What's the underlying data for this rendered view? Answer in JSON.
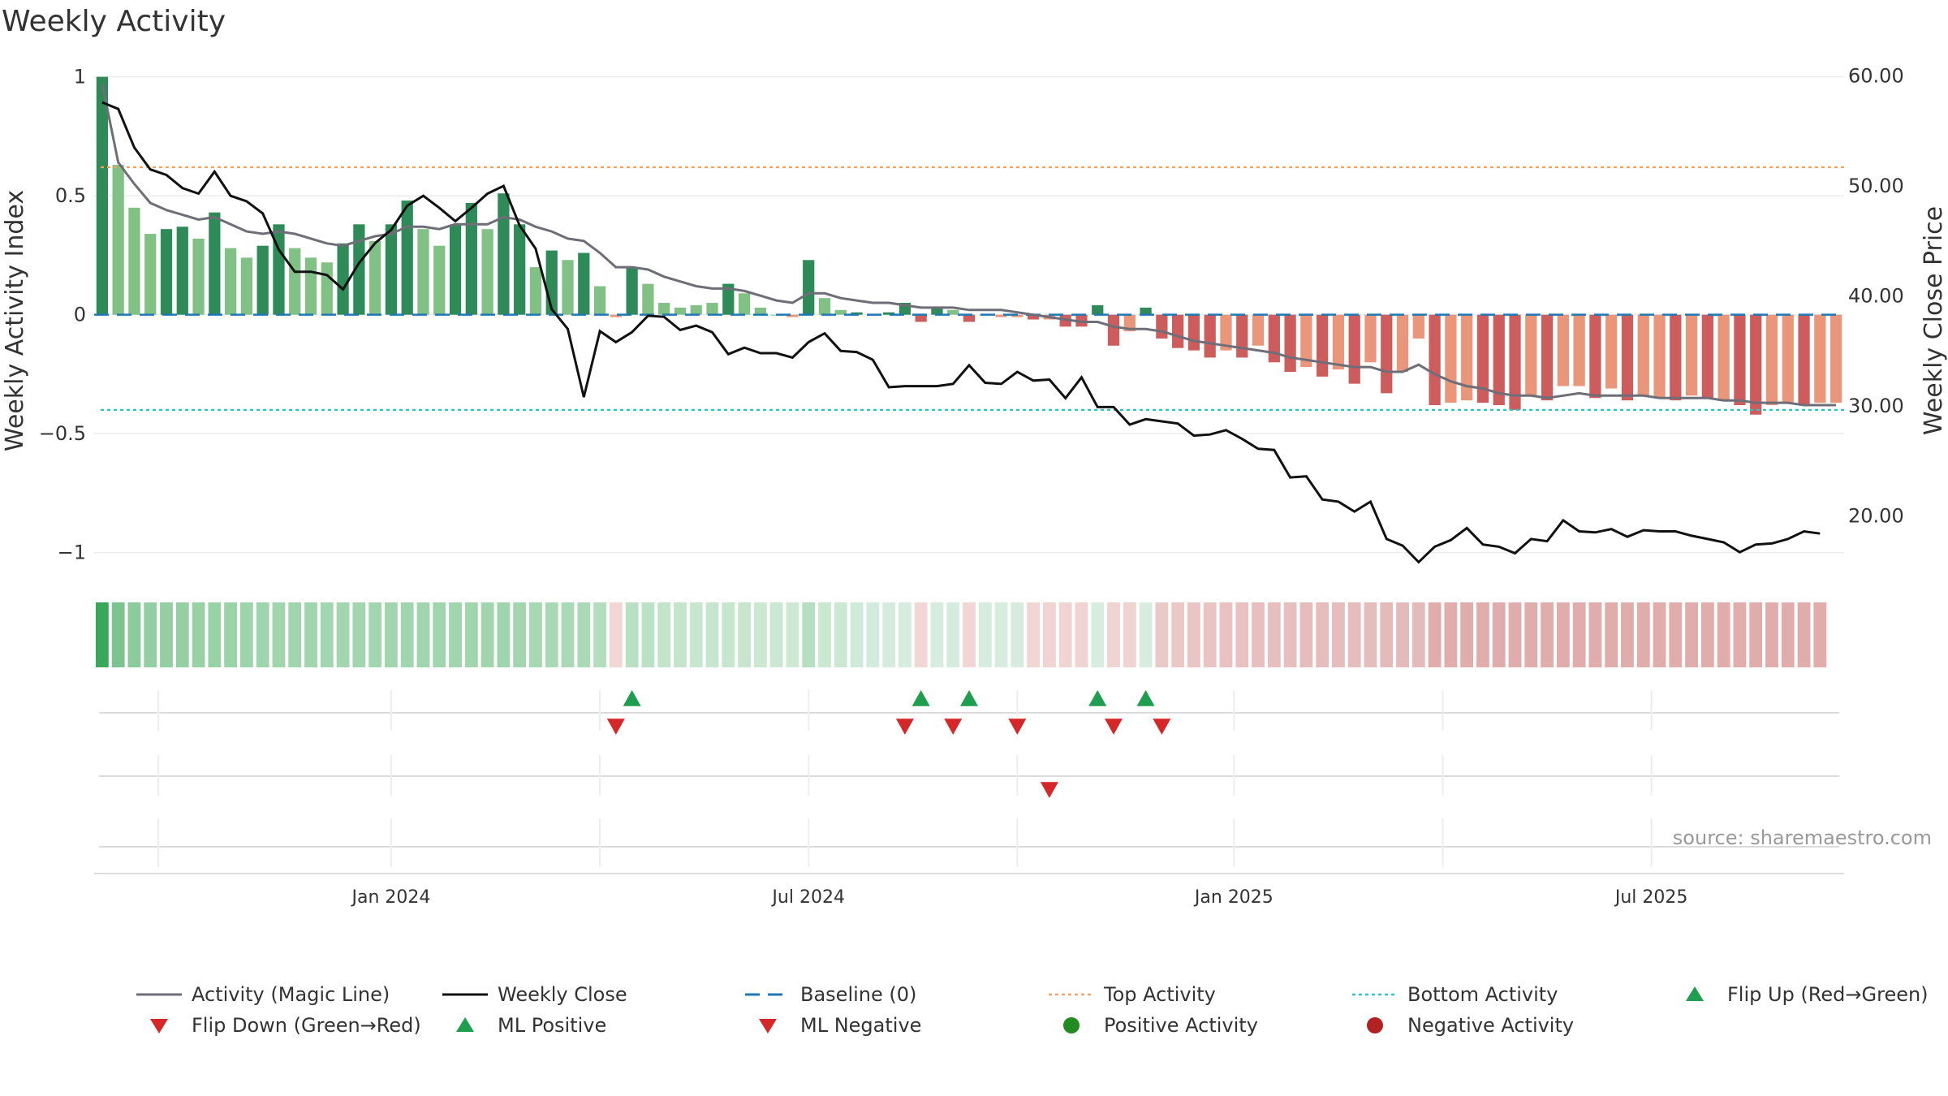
{
  "chart_data": {
    "type": "bar",
    "title": "Weekly Activity",
    "ylabel_left": "Weekly Activity Index",
    "ylabel_right": "Weekly Close Price",
    "ylim_left": [
      -1.1,
      1.05
    ],
    "ylim_right": [
      14.5,
      61.0
    ],
    "yticks_left": [
      "1",
      "0.5",
      "0",
      "−0.5",
      "−1"
    ],
    "yticks_left_values": [
      1,
      0.5,
      0,
      -0.5,
      -1
    ],
    "yticks_right": [
      "60.00",
      "50.00",
      "40.00",
      "30.00",
      "20.00"
    ],
    "yticks_right_values": [
      60,
      50,
      40,
      30,
      20
    ],
    "xticks": [
      "Jan 2024",
      "Jul 2024",
      "Jan 2025",
      "Jul 2025"
    ],
    "xticks_week_index": [
      18,
      44,
      70.5,
      96.5
    ],
    "source": "source: sharemaestro.com",
    "top_activity": 0.62,
    "bottom_activity": -0.4,
    "baseline": 0,
    "colors": {
      "strong_pos": "#2e8b57",
      "weak_pos": "#82c185",
      "strong_neg": "#cd5c5c",
      "weak_neg": "#e9967a",
      "magic_line": "#6e6e78",
      "close": "#111111",
      "baseline": "#1f77b4",
      "top": "#f0a45d",
      "bottom": "#2ec4c4",
      "marker_up": "#1f9e4f",
      "marker_down": "#d62728"
    },
    "activity": [
      1.0,
      0.63,
      0.45,
      0.34,
      0.36,
      0.37,
      0.32,
      0.43,
      0.28,
      0.24,
      0.29,
      0.38,
      0.28,
      0.24,
      0.22,
      0.3,
      0.38,
      0.31,
      0.38,
      0.48,
      0.36,
      0.29,
      0.38,
      0.47,
      0.36,
      0.51,
      0.38,
      0.2,
      0.27,
      0.23,
      0.26,
      0.12,
      -0.01,
      0.2,
      0.13,
      0.05,
      0.03,
      0.04,
      0.05,
      0.13,
      0.09,
      0.03,
      0.0,
      -0.01,
      0.23,
      0.07,
      0.02,
      0.01,
      0.0,
      0.01,
      0.05,
      -0.03,
      0.03,
      0.02,
      -0.03,
      0.0,
      -0.01,
      -0.01,
      -0.02,
      -0.02,
      -0.05,
      -0.05,
      0.04,
      -0.13,
      -0.07,
      0.03,
      -0.1,
      -0.14,
      -0.15,
      -0.18,
      -0.15,
      -0.18,
      -0.13,
      -0.2,
      -0.24,
      -0.22,
      -0.26,
      -0.23,
      -0.29,
      -0.2,
      -0.33,
      -0.24,
      -0.1,
      -0.38,
      -0.37,
      -0.36,
      -0.37,
      -0.38,
      -0.4,
      -0.34,
      -0.36,
      -0.3,
      -0.3,
      -0.35,
      -0.31,
      -0.36,
      -0.34,
      -0.35,
      -0.36,
      -0.34,
      -0.35,
      -0.36,
      -0.38,
      -0.42,
      -0.38,
      -0.37,
      -0.38,
      -0.37,
      -0.37
    ],
    "activity_strength": [
      "strong",
      "weak",
      "weak",
      "weak",
      "strong",
      "strong",
      "weak",
      "strong",
      "weak",
      "weak",
      "strong",
      "strong",
      "weak",
      "weak",
      "weak",
      "strong",
      "strong",
      "weak",
      "strong",
      "strong",
      "weak",
      "weak",
      "strong",
      "strong",
      "weak",
      "strong",
      "strong",
      "weak",
      "strong",
      "weak",
      "strong",
      "weak",
      "weak",
      "strong",
      "weak",
      "weak",
      "weak",
      "weak",
      "weak",
      "strong",
      "weak",
      "weak",
      "weak",
      "weak",
      "strong",
      "weak",
      "weak",
      "strong",
      "weak",
      "strong",
      "strong",
      "strong",
      "strong",
      "weak",
      "strong",
      "weak",
      "weak",
      "weak",
      "strong",
      "weak",
      "strong",
      "strong",
      "strong",
      "strong",
      "weak",
      "strong",
      "strong",
      "strong",
      "strong",
      "strong",
      "weak",
      "strong",
      "weak",
      "strong",
      "strong",
      "weak",
      "strong",
      "weak",
      "strong",
      "weak",
      "strong",
      "weak",
      "weak",
      "strong",
      "weak",
      "weak",
      "strong",
      "strong",
      "strong",
      "weak",
      "strong",
      "weak",
      "weak",
      "strong",
      "weak",
      "strong",
      "weak",
      "weak",
      "strong",
      "weak",
      "strong",
      "weak",
      "strong",
      "strong",
      "weak",
      "weak",
      "strong",
      "weak",
      "weak"
    ],
    "magic_line": [
      0.97,
      0.64,
      0.55,
      0.47,
      0.44,
      0.42,
      0.4,
      0.41,
      0.38,
      0.35,
      0.34,
      0.35,
      0.34,
      0.32,
      0.3,
      0.29,
      0.31,
      0.33,
      0.34,
      0.37,
      0.37,
      0.36,
      0.38,
      0.38,
      0.38,
      0.41,
      0.4,
      0.37,
      0.35,
      0.32,
      0.31,
      0.26,
      0.2,
      0.2,
      0.19,
      0.16,
      0.14,
      0.12,
      0.11,
      0.11,
      0.1,
      0.08,
      0.06,
      0.05,
      0.09,
      0.09,
      0.07,
      0.06,
      0.05,
      0.05,
      0.04,
      0.03,
      0.03,
      0.03,
      0.02,
      0.02,
      0.02,
      0.01,
      0.0,
      -0.01,
      -0.02,
      -0.03,
      -0.03,
      -0.05,
      -0.06,
      -0.06,
      -0.07,
      -0.09,
      -0.11,
      -0.12,
      -0.13,
      -0.14,
      -0.15,
      -0.16,
      -0.18,
      -0.19,
      -0.2,
      -0.21,
      -0.22,
      -0.22,
      -0.24,
      -0.24,
      -0.21,
      -0.25,
      -0.28,
      -0.3,
      -0.31,
      -0.33,
      -0.34,
      -0.34,
      -0.35,
      -0.34,
      -0.33,
      -0.34,
      -0.34,
      -0.34,
      -0.34,
      -0.35,
      -0.35,
      -0.35,
      -0.35,
      -0.36,
      -0.36,
      -0.37,
      -0.37,
      -0.37,
      -0.38,
      -0.38,
      -0.38
    ],
    "weekly_close": [
      57.6,
      57.0,
      53.5,
      51.5,
      51.0,
      49.8,
      49.3,
      51.3,
      49.1,
      48.6,
      47.5,
      44.2,
      42.2,
      42.2,
      41.9,
      40.6,
      43.0,
      44.8,
      46.0,
      48.2,
      49.1,
      48.0,
      46.8,
      48.0,
      49.3,
      50.0,
      46.4,
      44.3,
      38.8,
      37.0,
      30.8,
      36.8,
      35.8,
      36.7,
      38.2,
      38.1,
      36.9,
      37.3,
      36.7,
      34.7,
      35.3,
      34.8,
      34.8,
      34.4,
      35.8,
      36.6,
      35.0,
      34.9,
      34.2,
      31.7,
      31.8,
      31.8,
      31.8,
      32.0,
      33.7,
      32.1,
      32.0,
      33.1,
      32.3,
      32.4,
      30.7,
      32.6,
      29.9,
      29.9,
      28.3,
      28.8,
      28.6,
      28.4,
      27.3,
      27.4,
      27.8,
      27.0,
      26.1,
      26.0,
      23.5,
      23.6,
      21.5,
      21.3,
      20.4,
      21.3,
      17.9,
      17.3,
      15.8,
      17.2,
      17.8,
      18.9,
      17.4,
      17.2,
      16.6,
      17.9,
      17.7,
      19.6,
      18.6,
      18.5,
      18.8,
      18.1,
      18.7,
      18.6,
      18.6,
      18.2,
      17.9,
      17.6,
      16.7,
      17.4,
      17.5,
      17.9,
      18.6,
      18.4
    ],
    "ribbon_colors": [
      "#3aa85a",
      "#7dc38f",
      "#8ccb9c",
      "#93cfa2",
      "#93cfa2",
      "#95d0a3",
      "#98d1a6",
      "#99d2a7",
      "#9bd3a9",
      "#9dd4ab",
      "#9fd5ac",
      "#a0d5ad",
      "#a0d5ad",
      "#a0d5ad",
      "#a2d6af",
      "#a2d6af",
      "#a2d6af",
      "#a2d6af",
      "#a0d5ad",
      "#a0d5ad",
      "#a0d5ad",
      "#a0d5ad",
      "#a0d5ad",
      "#a0d5ad",
      "#a0d5ad",
      "#9fd5ac",
      "#a2d6af",
      "#a6d8b2",
      "#a8d9b4",
      "#aad9b5",
      "#aad9b5",
      "#b3ddbd",
      "#f2d6d6",
      "#b9e0c2",
      "#bce1c4",
      "#c2e4c9",
      "#c4e5cb",
      "#c6e6cd",
      "#c6e6cd",
      "#c6e6cd",
      "#c8e6ce",
      "#cbe8d1",
      "#cce8d2",
      "#cde9d3",
      "#b6dec0",
      "#cbe8d1",
      "#cce8d2",
      "#d0eada",
      "#d3ebdd",
      "#d4ecdd",
      "#d6ecdf",
      "#f2d6d6",
      "#d6ecdf",
      "#d4ecdd",
      "#f2d6d6",
      "#d6ecdf",
      "#d6ecdf",
      "#d6ecdf",
      "#f2d6d6",
      "#f0d4d4",
      "#f0d4d4",
      "#f0d4d4",
      "#d8eddf",
      "#f0d4d4",
      "#efd2d2",
      "#d8eddf",
      "#ecc9c9",
      "#ebc7c7",
      "#ebc5c5",
      "#eac3c3",
      "#e9c1c1",
      "#e9c1c1",
      "#e8bfbf",
      "#e8bfbf",
      "#e8bfbf",
      "#e6bdbd",
      "#e6bdbd",
      "#e6bdbd",
      "#e6bdbd",
      "#e6bdbd",
      "#e4baba",
      "#e4baba",
      "#e4baba",
      "#e1acac",
      "#e1acac",
      "#e1acac",
      "#e1acac",
      "#e1acac",
      "#e1acac",
      "#e1acac",
      "#e1acac",
      "#e1acac",
      "#e1acac",
      "#e1acac",
      "#e1acac",
      "#e1acac",
      "#e1acac",
      "#e1acac",
      "#e1acac",
      "#e1acac",
      "#e1acac",
      "#e1acac",
      "#e1acac",
      "#e1acac",
      "#e1acac",
      "#e1acac",
      "#e1acac",
      "#e1acac"
    ],
    "flip_up_weeks": [
      33,
      51,
      54,
      62,
      65
    ],
    "flip_down_weeks": [
      32,
      50,
      53,
      57,
      63,
      66
    ],
    "ml_negative_weeks": [
      59
    ],
    "legend": [
      {
        "label": "Activity (Magic Line)",
        "symbol": "line",
        "color": "#6e6e78"
      },
      {
        "label": "Weekly Close",
        "symbol": "line",
        "color": "#111111"
      },
      {
        "label": "Baseline (0)",
        "symbol": "dash",
        "color": "#1f77b4"
      },
      {
        "label": "Top Activity",
        "symbol": "dot-line",
        "color": "#f0a45d"
      },
      {
        "label": "Bottom Activity",
        "symbol": "dot-line",
        "color": "#2ec4c4"
      },
      {
        "label": "Flip Up (Red→Green)",
        "symbol": "triangle-up",
        "color": "#1f9e4f"
      },
      {
        "label": "Flip Down (Green→Red)",
        "symbol": "triangle-down",
        "color": "#d62728"
      },
      {
        "label": "ML Positive",
        "symbol": "triangle-up",
        "color": "#1f9e4f"
      },
      {
        "label": "ML Negative",
        "symbol": "triangle-down",
        "color": "#d62728"
      },
      {
        "label": "Positive Activity",
        "symbol": "circle",
        "color": "#228b22"
      },
      {
        "label": "Negative Activity",
        "symbol": "circle",
        "color": "#b22222"
      }
    ]
  }
}
